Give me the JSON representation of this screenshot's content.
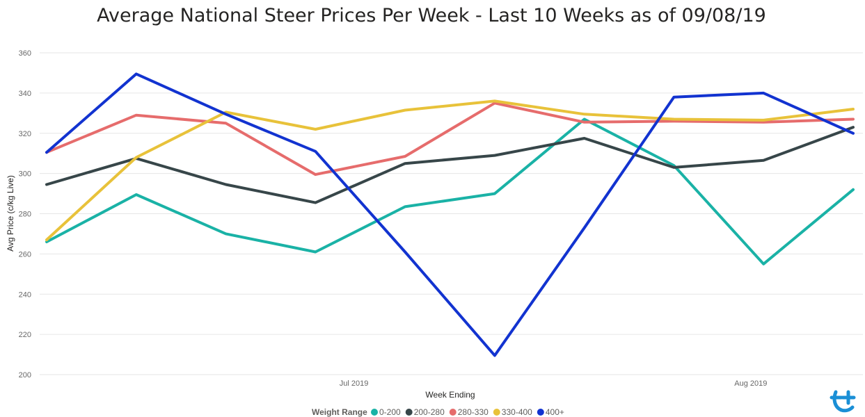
{
  "chart_data": {
    "type": "line",
    "title": "Average National Steer Prices Per Week - Last 10 Weeks as of 09/08/19",
    "xlabel": "Week Ending",
    "ylabel": "Avg Price (c/kg Live)",
    "ylim": [
      200,
      360
    ],
    "yticks": [
      200,
      220,
      240,
      260,
      280,
      300,
      320,
      340,
      360
    ],
    "xtick_labels": [
      {
        "label": "Jul 2019",
        "x": "2019-07-01"
      },
      {
        "label": "Aug 2019",
        "x": "2019-08-01"
      }
    ],
    "x": [
      "2019-06-07",
      "2019-06-14",
      "2019-06-21",
      "2019-06-28",
      "2019-07-05",
      "2019-07-12",
      "2019-07-19",
      "2019-07-26",
      "2019-08-02",
      "2019-08-09"
    ],
    "series": [
      {
        "name": "0-200",
        "color": "#1AB2A6",
        "values": [
          266,
          289.5,
          270,
          261,
          283.5,
          290,
          327,
          304,
          255,
          292
        ]
      },
      {
        "name": "200-280",
        "color": "#374649",
        "values": [
          294.5,
          307.5,
          294.5,
          285.5,
          305,
          309,
          317.5,
          303,
          306.5,
          323
        ]
      },
      {
        "name": "280-330",
        "color": "#E66C6C",
        "values": [
          310.5,
          329,
          325,
          299.5,
          308.5,
          335,
          325.5,
          326,
          325.5,
          327
        ]
      },
      {
        "name": "330-400",
        "color": "#E8C23A",
        "values": [
          267,
          308,
          330.5,
          322,
          331.5,
          336,
          329.5,
          327,
          326.5,
          332
        ]
      },
      {
        "name": "400+",
        "color": "#1233D0",
        "values": [
          310.5,
          349.5,
          329.5,
          311,
          261,
          209.5,
          273,
          338,
          340,
          320
        ]
      }
    ],
    "legend": {
      "title": "Weight Range",
      "placement": "bottom-center"
    },
    "grid": true
  },
  "logo": {
    "name": "brand-logo-icon",
    "color": "#1a8fd6"
  }
}
